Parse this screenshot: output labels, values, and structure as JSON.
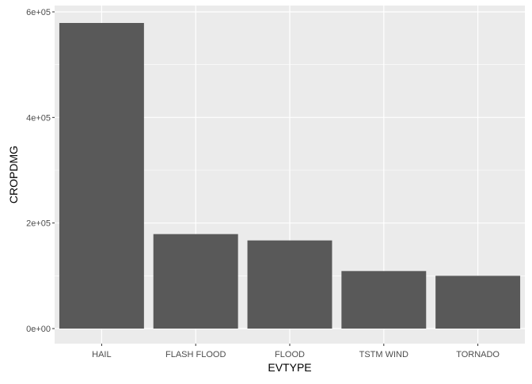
{
  "chart_data": {
    "type": "bar",
    "title": "",
    "xlabel": "EVTYPE",
    "ylabel": "CROPDMG",
    "categories": [
      "HAIL",
      "FLASH FLOOD",
      "FLOOD",
      "TSTM WIND",
      "TORNADO"
    ],
    "values": [
      579000,
      179000,
      167000,
      109000,
      100000
    ],
    "ylim": [
      0,
      610000
    ],
    "yticks": [
      0,
      200000,
      400000,
      600000
    ],
    "ytick_labels": [
      "0e+00",
      "2e+05",
      "4e+05",
      "6e+05"
    ],
    "grid": true,
    "legend": "none",
    "colors": {
      "panel_bg": "#EBEBEB",
      "grid_major": "#FFFFFF",
      "bar_fill": "#595959",
      "axis_text": "#4D4D4D",
      "axis_title": "#000000",
      "tick": "#333333"
    }
  }
}
